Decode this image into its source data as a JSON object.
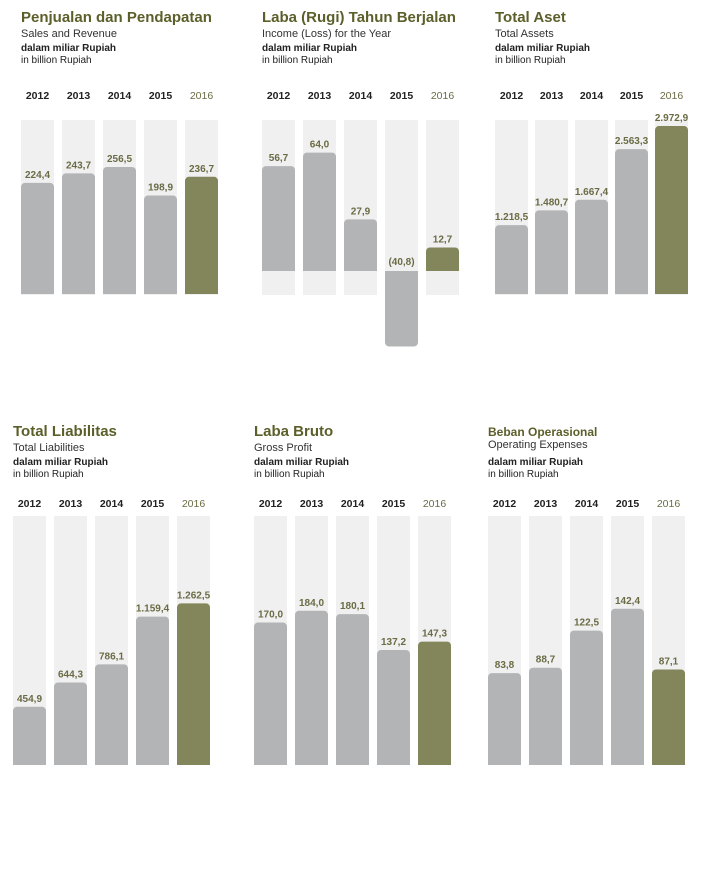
{
  "colors": {
    "track": "#f0f0f1",
    "bar": "#b3b4b6",
    "highlight": "#82865a",
    "title": "#5c5f2a"
  },
  "charts": [
    {
      "title": "Penjualan dan Pendapatan",
      "subtitle": "Sales and Revenue",
      "unit_id": "dalam miliar Rupiah",
      "unit_en": "in billion Rupiah",
      "chart_data": {
        "type": "bar",
        "categories": [
          "2012",
          "2013",
          "2014",
          "2015",
          "2016"
        ],
        "values": [
          224.4,
          243.7,
          256.5,
          198.9,
          236.7
        ],
        "labels": [
          "224,4",
          "243,7",
          "256,5",
          "198,9",
          "236,7"
        ],
        "highlight": "2016"
      }
    },
    {
      "title": "Laba (Rugi) Tahun Berjalan",
      "subtitle": "Income (Loss) for the Year",
      "unit_id": "dalam miliar Rupiah",
      "unit_en": "in billion Rupiah",
      "chart_data": {
        "type": "bar",
        "categories": [
          "2012",
          "2013",
          "2014",
          "2015",
          "2016"
        ],
        "values": [
          56.7,
          64.0,
          27.9,
          -40.8,
          12.7
        ],
        "labels": [
          "56,7",
          "64,0",
          "27,9",
          "(40,8)",
          "12,7"
        ],
        "highlight": "2016"
      }
    },
    {
      "title": "Total Aset",
      "subtitle": "Total Assets",
      "unit_id": "dalam miliar Rupiah",
      "unit_en": "in billion Rupiah",
      "chart_data": {
        "type": "bar",
        "categories": [
          "2012",
          "2013",
          "2014",
          "2015",
          "2016"
        ],
        "values": [
          1218.5,
          1480.7,
          1667.4,
          2563.3,
          2972.9
        ],
        "labels": [
          "1.218,5",
          "1.480,7",
          "1.667,4",
          "2.563,3",
          "2.972,9"
        ],
        "highlight": "2016"
      }
    },
    {
      "title": "Total Liabilitas",
      "subtitle": "Total Liabilities",
      "unit_id": "dalam miliar Rupiah",
      "unit_en": "in billion Rupiah",
      "chart_data": {
        "type": "bar",
        "categories": [
          "2012",
          "2013",
          "2014",
          "2015",
          "2016"
        ],
        "values": [
          454.9,
          644.3,
          786.1,
          1159.4,
          1262.5
        ],
        "labels": [
          "454,9",
          "644,3",
          "786,1",
          "1.159,4",
          "1.262,5"
        ],
        "highlight": "2016"
      }
    },
    {
      "title": "Laba Bruto",
      "subtitle": "Gross Profit",
      "unit_id": "dalam miliar Rupiah",
      "unit_en": "in billion Rupiah",
      "chart_data": {
        "type": "bar",
        "categories": [
          "2012",
          "2013",
          "2014",
          "2015",
          "2016"
        ],
        "values": [
          170.0,
          184.0,
          180.1,
          137.2,
          147.3
        ],
        "labels": [
          "170,0",
          "184,0",
          "180,1",
          "137,2",
          "147,3"
        ],
        "highlight": "2016"
      }
    },
    {
      "title": "Beban Operasional",
      "subtitle": "Operating Expenses",
      "unit_id": "dalam miliar Rupiah",
      "unit_en": "in billion Rupiah",
      "chart_data": {
        "type": "bar",
        "categories": [
          "2012",
          "2013",
          "2014",
          "2015",
          "2016"
        ],
        "values": [
          83.8,
          88.7,
          122.5,
          142.4,
          87.1
        ],
        "labels": [
          "83,8",
          "88,7",
          "122,5",
          "142,4",
          "87,1"
        ],
        "highlight": "2016"
      }
    }
  ]
}
